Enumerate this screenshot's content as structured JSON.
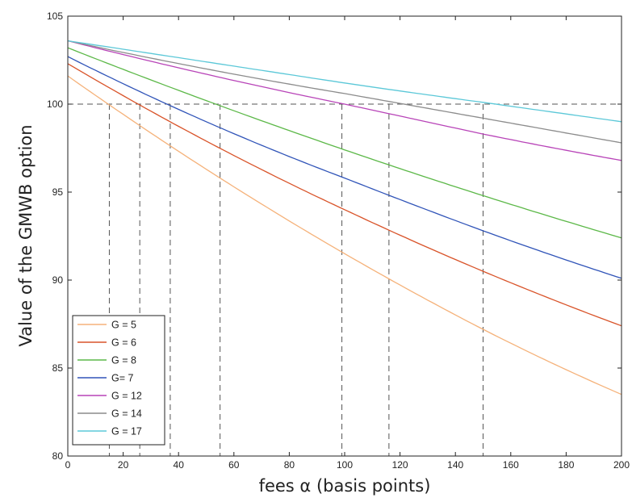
{
  "chart_data": {
    "type": "line",
    "xlabel": "fees α  (basis points)",
    "ylabel": "Value of the GMWB option",
    "xlim": [
      0,
      200
    ],
    "ylim": [
      80,
      105
    ],
    "xticks": [
      "0",
      "20",
      "40",
      "60",
      "80",
      "100",
      "120",
      "140",
      "160",
      "180",
      "200"
    ],
    "yticks": [
      "80",
      "85",
      "90",
      "95",
      "100",
      "105"
    ],
    "grid": false,
    "legend_position": "bottom-left",
    "series": [
      {
        "name": "G = 5",
        "color": "#f5b27a",
        "x": [
          0,
          50,
          100,
          150,
          200
        ],
        "y": [
          101.6,
          96.3,
          91.5,
          87.2,
          83.5
        ]
      },
      {
        "name": "G = 6",
        "color": "#d9542a",
        "x": [
          0,
          50,
          100,
          150,
          200
        ],
        "y": [
          102.3,
          97.9,
          94.0,
          90.5,
          87.4
        ]
      },
      {
        "name": "G = 8",
        "color": "#5cb848",
        "x": [
          0,
          50,
          100,
          150,
          200
        ],
        "y": [
          103.2,
          100.2,
          97.4,
          94.8,
          92.4
        ]
      },
      {
        "name": "G= 7",
        "color": "#3054b8",
        "x": [
          0,
          50,
          100,
          150,
          200
        ],
        "y": [
          102.7,
          99.0,
          95.8,
          92.8,
          90.1
        ]
      },
      {
        "name": "G = 12",
        "color": "#b844b8",
        "x": [
          0,
          50,
          100,
          150,
          200
        ],
        "y": [
          103.6,
          101.7,
          100.0,
          98.3,
          96.8
        ]
      },
      {
        "name": "G = 14",
        "color": "#8c8c8c",
        "x": [
          0,
          50,
          100,
          150,
          200
        ],
        "y": [
          103.6,
          102.0,
          100.6,
          99.2,
          97.8
        ]
      },
      {
        "name": "G = 17",
        "color": "#5cc8d8",
        "x": [
          0,
          50,
          100,
          150,
          200
        ],
        "y": [
          103.6,
          102.4,
          101.2,
          100.1,
          99.0
        ]
      }
    ],
    "reference_lines": {
      "horizontal_y": 100,
      "vertical_x": [
        15,
        26,
        37,
        55,
        99,
        116,
        150
      ]
    }
  }
}
